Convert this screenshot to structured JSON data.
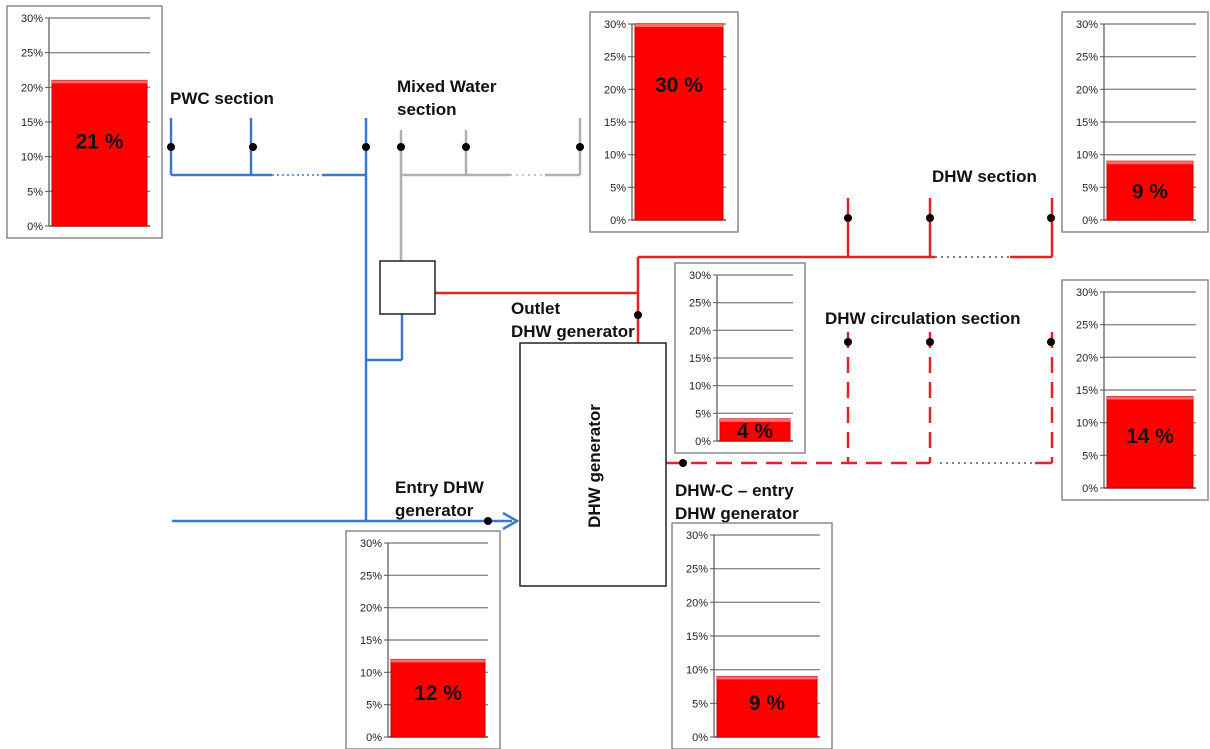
{
  "chart_data": [
    {
      "type": "bar",
      "id": "pwc",
      "values": [
        21
      ],
      "value_label": "21 %",
      "ytick_labels": [
        "0%",
        "5%",
        "10%",
        "15%",
        "20%",
        "25%",
        "30%"
      ],
      "ylim": [
        0,
        30
      ],
      "bar_color": "#ff0000"
    },
    {
      "type": "bar",
      "id": "mixed",
      "values": [
        30
      ],
      "value_label": "30 %",
      "ytick_labels": [
        "0%",
        "5%",
        "10%",
        "15%",
        "20%",
        "25%",
        "30%"
      ],
      "ylim": [
        0,
        30
      ],
      "bar_color": "#ff0000"
    },
    {
      "type": "bar",
      "id": "dhw",
      "values": [
        9
      ],
      "value_label": "9 %",
      "ytick_labels": [
        "0%",
        "5%",
        "10%",
        "15%",
        "20%",
        "25%",
        "30%"
      ],
      "ylim": [
        0,
        30
      ],
      "bar_color": "#ff0000"
    },
    {
      "type": "bar",
      "id": "outlet",
      "values": [
        4
      ],
      "value_label": "4 %",
      "ytick_labels": [
        "0%",
        "5%",
        "10%",
        "15%",
        "20%",
        "25%",
        "30%"
      ],
      "ylim": [
        0,
        30
      ],
      "bar_color": "#ff0000"
    },
    {
      "type": "bar",
      "id": "circ",
      "values": [
        14
      ],
      "value_label": "14 %",
      "ytick_labels": [
        "0%",
        "5%",
        "10%",
        "15%",
        "20%",
        "25%",
        "30%"
      ],
      "ylim": [
        0,
        30
      ],
      "bar_color": "#ff0000"
    },
    {
      "type": "bar",
      "id": "entry",
      "values": [
        12
      ],
      "value_label": "12 %",
      "ytick_labels": [
        "0%",
        "5%",
        "10%",
        "15%",
        "20%",
        "25%",
        "30%"
      ],
      "ylim": [
        0,
        30
      ],
      "bar_color": "#ff0000"
    },
    {
      "type": "bar",
      "id": "dhwc",
      "values": [
        9
      ],
      "value_label": "9 %",
      "ytick_labels": [
        "0%",
        "5%",
        "10%",
        "15%",
        "20%",
        "25%",
        "30%"
      ],
      "ylim": [
        0,
        30
      ],
      "bar_color": "#ff0000"
    }
  ],
  "labels": {
    "pwc_section": "PWC section",
    "mixed_water_line1": "Mixed Water",
    "mixed_water_line2": "section",
    "dhw_section": "DHW section",
    "dhw_circulation_section": "DHW circulation section",
    "outlet_line1": "Outlet",
    "outlet_line2": "DHW generator",
    "dhw_generator": "DHW generator",
    "entry_line1": "Entry DHW",
    "entry_line2": "generator",
    "dhwc_line1": "DHW-C – entry",
    "dhwc_line2": "DHW generator"
  },
  "colors": {
    "pwc_pipe": "#3a78d0",
    "mixed_pipe": "#b0b0b0",
    "dhw_pipe": "#e0242a",
    "bar": "#ff0000",
    "grid": "#888888"
  }
}
